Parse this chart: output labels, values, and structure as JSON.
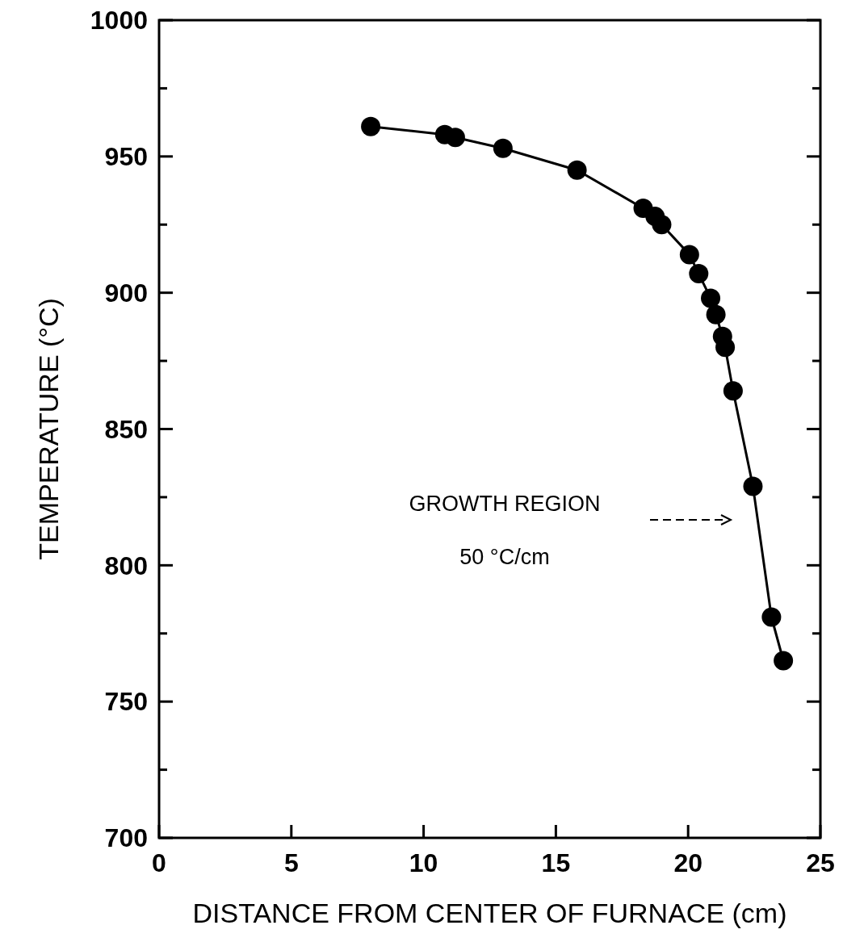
{
  "chart_data": {
    "type": "line",
    "xlabel": "DISTANCE FROM CENTER OF FURNACE (cm)",
    "ylabel": "TEMPERATURE (°C)",
    "x": [
      8.0,
      10.8,
      11.2,
      13.0,
      15.8,
      18.3,
      18.75,
      19.0,
      20.05,
      20.4,
      20.85,
      21.05,
      21.3,
      21.4,
      21.7,
      22.45,
      23.15,
      23.6
    ],
    "series": [
      {
        "color": "#000000",
        "values": [
          961,
          958,
          957,
          953,
          945,
          931,
          928,
          925,
          914,
          907,
          898,
          892,
          884,
          880,
          864,
          829,
          781,
          765
        ]
      }
    ],
    "xlim": [
      0,
      25
    ],
    "xticks": [
      0,
      5,
      10,
      15,
      20,
      25
    ],
    "ylim": [
      700,
      1000
    ],
    "yticks": [
      700,
      {
        "value": 725,
        "label": null
      },
      750,
      {
        "value": 775,
        "label": null
      },
      800,
      {
        "value": 825,
        "label": null
      },
      850,
      {
        "value": 875,
        "label": null
      },
      900,
      {
        "value": 925,
        "label": null
      },
      950,
      {
        "value": 975,
        "label": null
      },
      1000
    ],
    "marker": "circle",
    "line_style": "solid",
    "grid": false,
    "annotations": [
      "GROWTH REGION",
      "50 °C/cm"
    ]
  }
}
